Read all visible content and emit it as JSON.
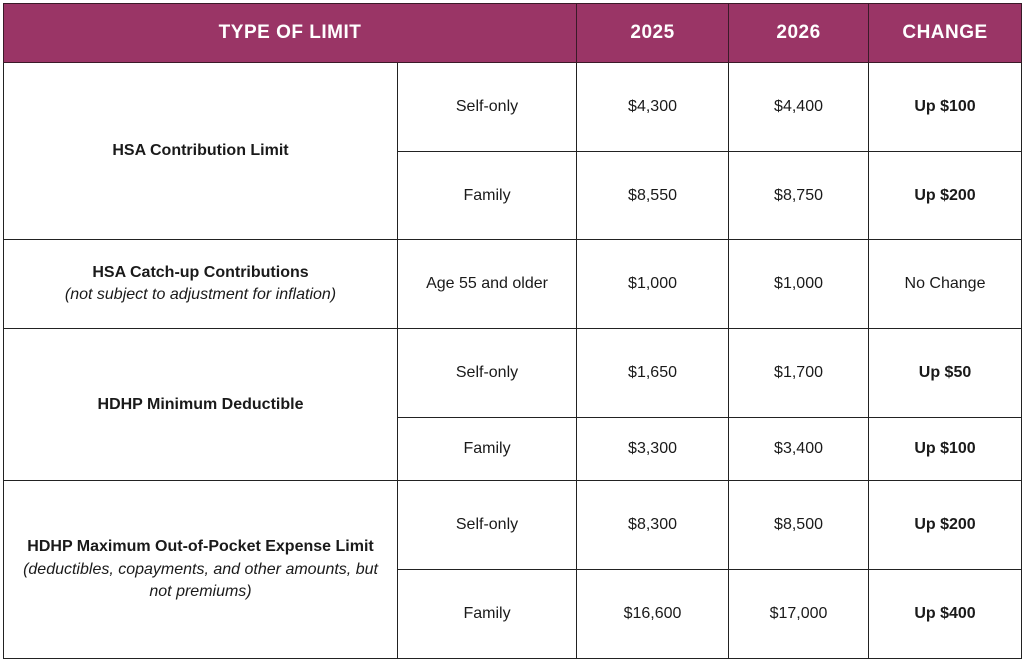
{
  "header": {
    "type_of_limit": "TYPE OF LIMIT",
    "year_2025": "2025",
    "year_2026": "2026",
    "change": "CHANGE"
  },
  "groups": [
    {
      "title": "HSA Contribution Limit",
      "note": "",
      "rows": [
        {
          "coverage": "Self-only",
          "v2025": "$4,300",
          "v2026": "$4,400",
          "change": "Up $100"
        },
        {
          "coverage": "Family",
          "v2025": "$8,550",
          "v2026": "$8,750",
          "change": "Up $200"
        }
      ]
    },
    {
      "title": "HSA Catch-up Contributions",
      "note": "(not subject to adjustment for inflation)",
      "rows": [
        {
          "coverage": "Age 55 and older",
          "v2025": "$1,000",
          "v2026": "$1,000",
          "change": "No Change"
        }
      ]
    },
    {
      "title": "HDHP Minimum Deductible",
      "note": "",
      "rows": [
        {
          "coverage": "Self-only",
          "v2025": "$1,650",
          "v2026": "$1,700",
          "change": "Up $50"
        },
        {
          "coverage": "Family",
          "v2025": "$3,300",
          "v2026": "$3,400",
          "change": "Up $100"
        }
      ]
    },
    {
      "title": "HDHP Maximum Out-of-Pocket Expense Limit",
      "note": "(deductibles, copayments, and other amounts, but not premiums)",
      "rows": [
        {
          "coverage": "Self-only",
          "v2025": "$8,300",
          "v2026": "$8,500",
          "change": "Up $200"
        },
        {
          "coverage": "Family",
          "v2025": "$16,600",
          "v2026": "$17,000",
          "change": "Up $400"
        }
      ]
    }
  ],
  "colors": {
    "header_bg": "#9a3566",
    "header_text": "#ffffff",
    "border": "#222222"
  }
}
